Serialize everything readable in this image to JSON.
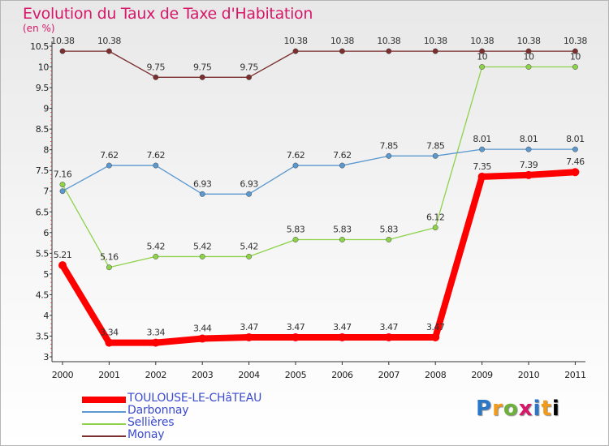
{
  "chart_data": {
    "type": "line",
    "title": "Evolution du Taux de Taxe d'Habitation",
    "unit_label": "(en %)",
    "x": [
      "2000",
      "2001",
      "2002",
      "2003",
      "2004",
      "2005",
      "2006",
      "2007",
      "2008",
      "2009",
      "2010",
      "2011"
    ],
    "ylim": [
      3,
      10.5
    ],
    "y_ticks": [
      "3",
      "3.5",
      "4",
      "4.5",
      "5",
      "5.5",
      "6",
      "6.5",
      "7",
      "7.5",
      "8",
      "8.5",
      "9",
      "9.5",
      "10",
      "10.5"
    ],
    "grid": false,
    "legend_position": "bottom-left",
    "series": [
      {
        "name": "Monay",
        "color": "#7a2e2e",
        "values": [
          10.38,
          10.38,
          9.75,
          9.75,
          9.75,
          10.38,
          10.38,
          10.38,
          10.38,
          10.38,
          10.38,
          10.38
        ],
        "labels": [
          "10.38",
          "10.38",
          "9.75",
          "9.75",
          "9.75",
          "10.38",
          "10.38",
          "10.38",
          "10.38",
          "10.38",
          "10.38",
          "10.38"
        ]
      },
      {
        "name": "Sellières",
        "color": "#8ed24a",
        "values": [
          7.16,
          5.16,
          5.42,
          5.42,
          5.42,
          5.83,
          5.83,
          5.83,
          6.12,
          10,
          10,
          10
        ],
        "labels": [
          "7.16",
          "5.16",
          "5.42",
          "5.42",
          "5.42",
          "5.83",
          "5.83",
          "5.83",
          "6.12",
          "10",
          "10",
          "10"
        ]
      },
      {
        "name": "Darbonnay",
        "color": "#5a98cf",
        "values": [
          7,
          7.62,
          7.62,
          6.93,
          6.93,
          7.62,
          7.62,
          7.85,
          7.85,
          8.01,
          8.01,
          8.01
        ],
        "labels": [
          "",
          "7.62",
          "7.62",
          "6.93",
          "6.93",
          "7.62",
          "7.62",
          "7.85",
          "7.85",
          "8.01",
          "8.01",
          "8.01"
        ]
      },
      {
        "name": "TOULOUSE-LE-CHâTEAU",
        "color": "#ff0000",
        "values": [
          5.21,
          3.34,
          3.34,
          3.44,
          3.47,
          3.47,
          3.47,
          3.47,
          3.47,
          7.35,
          7.39,
          7.46
        ],
        "labels": [
          "5.21",
          "3.34",
          "3.34",
          "3.44",
          "3.47",
          "3.47",
          "3.47",
          "3.47",
          "3.47",
          "7.35",
          "7.39",
          "7.46"
        ]
      }
    ]
  },
  "legend": [
    {
      "label": "TOULOUSE-LE-CHâTEAU",
      "color": "#ff0000"
    },
    {
      "label": "Darbonnay",
      "color": "#5a98cf"
    },
    {
      "label": "Sellières",
      "color": "#8ed24a"
    },
    {
      "label": "Monay",
      "color": "#7a2e2e"
    }
  ],
  "brand": {
    "letters": [
      "P",
      "r",
      "o",
      "x",
      "i",
      "t",
      "i"
    ]
  }
}
